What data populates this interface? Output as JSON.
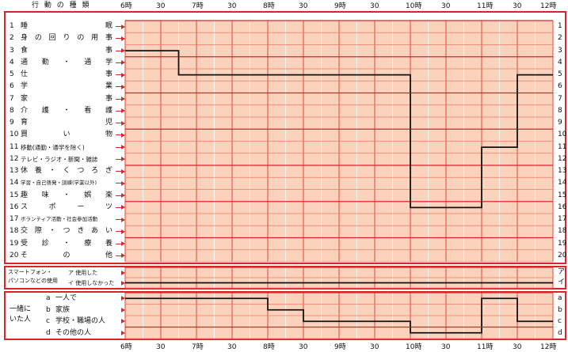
{
  "header": {
    "activity_column": "行 動 の 種 類",
    "time_labels": [
      "6時",
      "30",
      "7時",
      "30",
      "8時",
      "30",
      "9時",
      "30",
      "10時",
      "30",
      "11時",
      "30",
      "12時"
    ]
  },
  "activities": [
    {
      "num": "1",
      "label": "睡眠",
      "code": "1"
    },
    {
      "num": "2",
      "label": "身の回りの用事",
      "code": "2"
    },
    {
      "num": "3",
      "label": "食事",
      "code": "3"
    },
    {
      "num": "4",
      "label": "通勤・通学",
      "code": "4"
    },
    {
      "num": "5",
      "label": "仕事",
      "code": "5"
    },
    {
      "num": "6",
      "label": "学業",
      "code": "6"
    },
    {
      "num": "7",
      "label": "家事",
      "code": "7"
    },
    {
      "num": "8",
      "label": "介護・看護",
      "code": "8"
    },
    {
      "num": "9",
      "label": "育児",
      "code": "9"
    },
    {
      "num": "10",
      "label": "買い物",
      "code": "10"
    },
    {
      "num": "11",
      "label": "移動(通勤・通学を除く)",
      "code": "11"
    },
    {
      "num": "12",
      "label": "テレビ・ラジオ・新聞・雑誌",
      "code": "12"
    },
    {
      "num": "13",
      "label": "休養・くつろぎ",
      "code": "13"
    },
    {
      "num": "14",
      "label": "学習・自己啓発・訓練(学業以外)",
      "code": "14"
    },
    {
      "num": "15",
      "label": "趣味・娯楽",
      "code": "15"
    },
    {
      "num": "16",
      "label": "スポーツ",
      "code": "16"
    },
    {
      "num": "17",
      "label": "ボランティア活動・社会参加活動",
      "code": "17"
    },
    {
      "num": "18",
      "label": "交際・つきあい",
      "code": "18"
    },
    {
      "num": "19",
      "label": "受診・療養",
      "code": "19"
    },
    {
      "num": "20",
      "label": "その他",
      "code": "20"
    }
  ],
  "smartphone": {
    "group_label_1": "スマートフォン・",
    "group_label_2": "パソコンなどの使用",
    "rows": [
      {
        "label": "ア 使用した",
        "code": "ア"
      },
      {
        "label": "イ 使用しなかった",
        "code": "イ"
      }
    ]
  },
  "together": {
    "group_label_1": "一緒に",
    "group_label_2": "いた人",
    "rows": [
      {
        "letter": "a",
        "label": "一人で",
        "code": "a"
      },
      {
        "letter": "b",
        "label": "家族",
        "code": "b"
      },
      {
        "letter": "c",
        "label": "学校・職場の人",
        "code": "c"
      },
      {
        "letter": "d",
        "label": "その他の人",
        "code": "d"
      }
    ]
  },
  "chart_data": {
    "type": "line",
    "note_units": "15-minute slots from 6時 to 12時 (24 slots)",
    "activity_trace": [
      {
        "from_slot": 0,
        "to_slot": 3,
        "row": 3
      },
      {
        "from_slot": 3,
        "to_slot": 16,
        "row": 5
      },
      {
        "from_slot": 16,
        "to_slot": 20,
        "row": 16
      },
      {
        "from_slot": 20,
        "to_slot": 22,
        "row": 11
      },
      {
        "from_slot": 22,
        "to_slot": 24,
        "row": 5
      }
    ],
    "smartphone_trace": [
      {
        "from_slot": 0,
        "to_slot": 24,
        "row": 2
      }
    ],
    "together_trace": [
      {
        "from_slot": 0,
        "to_slot": 8,
        "row": 1
      },
      {
        "from_slot": 8,
        "to_slot": 10,
        "row": 2
      },
      {
        "from_slot": 10,
        "to_slot": 16,
        "row": 3
      },
      {
        "from_slot": 16,
        "to_slot": 20,
        "row": 4
      },
      {
        "from_slot": 20,
        "to_slot": 22,
        "row": 1
      },
      {
        "from_slot": 22,
        "to_slot": 24,
        "row": 3
      }
    ],
    "colors": {
      "grid_bg": "#fbd3bd",
      "grid_line": "#f07a6a",
      "frame": "#d8252c",
      "trace": "#111111"
    }
  }
}
